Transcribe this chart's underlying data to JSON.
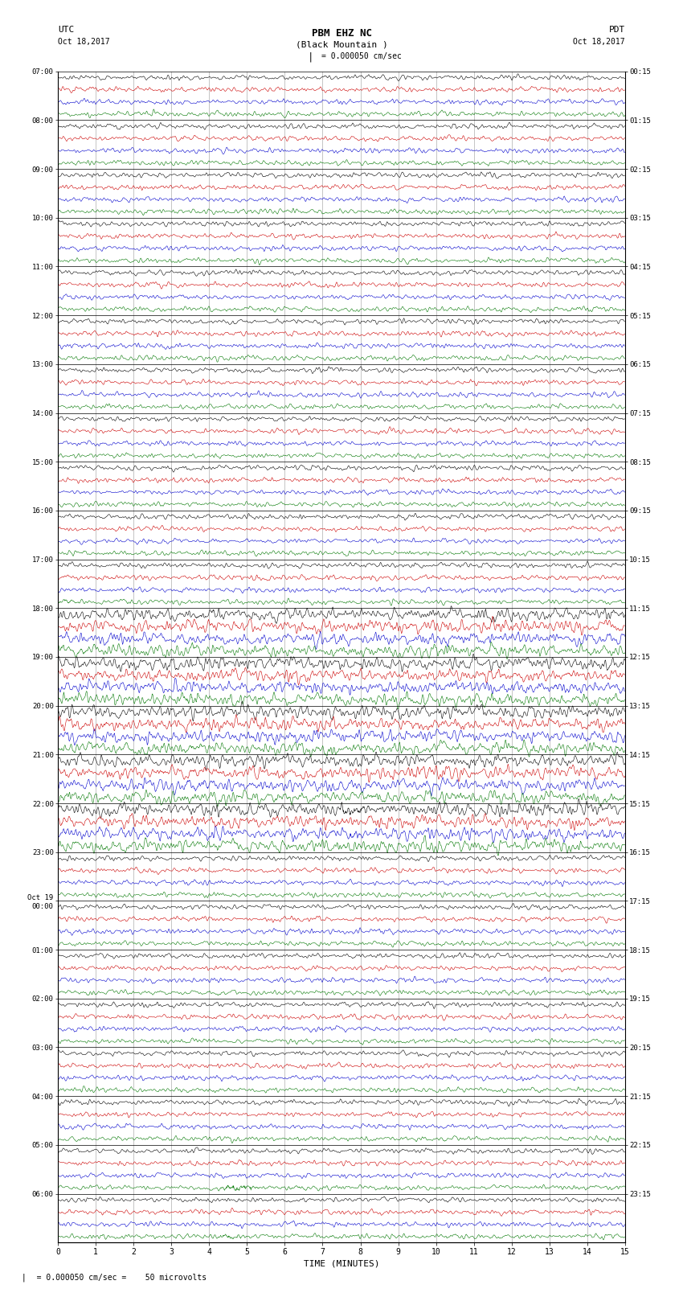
{
  "title_line1": "PBM EHZ NC",
  "title_line2": "(Black Mountain )",
  "scale_label": "= 0.000050 cm/sec",
  "utc_label": "UTC",
  "utc_date": "Oct 18,2017",
  "pdt_label": "PDT",
  "pdt_date": "Oct 18,2017",
  "xlabel": "TIME (MINUTES)",
  "bottom_note": "   = 0.000050 cm/sec =    50 microvolts",
  "bg_color": "#ffffff",
  "trace_colors": [
    "#000000",
    "#cc0000",
    "#0000cc",
    "#007700"
  ],
  "num_hours": 24,
  "traces_per_hour": 4,
  "xlim": [
    0,
    15
  ],
  "xticks": [
    0,
    1,
    2,
    3,
    4,
    5,
    6,
    7,
    8,
    9,
    10,
    11,
    12,
    13,
    14,
    15
  ],
  "left_labels": [
    "07:00",
    "08:00",
    "09:00",
    "10:00",
    "11:00",
    "12:00",
    "13:00",
    "14:00",
    "15:00",
    "16:00",
    "17:00",
    "18:00",
    "19:00",
    "20:00",
    "21:00",
    "22:00",
    "23:00",
    "Oct 19\n00:00",
    "01:00",
    "02:00",
    "03:00",
    "04:00",
    "05:00",
    "06:00"
  ],
  "right_labels": [
    "00:15",
    "01:15",
    "02:15",
    "03:15",
    "04:15",
    "05:15",
    "06:15",
    "07:15",
    "08:15",
    "09:15",
    "10:15",
    "11:15",
    "12:15",
    "13:15",
    "14:15",
    "15:15",
    "16:15",
    "17:15",
    "18:15",
    "19:15",
    "20:15",
    "21:15",
    "22:15",
    "23:15"
  ],
  "grid_color": "#999999",
  "hour_line_color": "#000000"
}
